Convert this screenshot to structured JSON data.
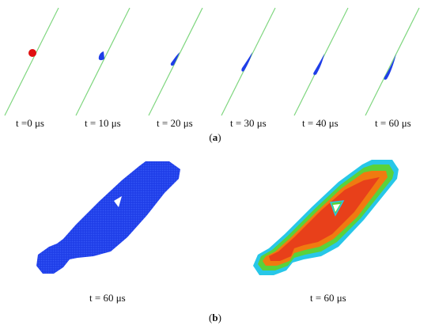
{
  "panel_a": {
    "frames": [
      {
        "label": "t =0 μs"
      },
      {
        "label": "t = 10 μs"
      },
      {
        "label": "t = 20 μs"
      },
      {
        "label": "t = 30 μs"
      },
      {
        "label": "t = 40 μs"
      },
      {
        "label": "t = 60 μs"
      }
    ],
    "caption_prefix": "(",
    "caption_letter": "a",
    "caption_suffix": ")"
  },
  "panel_b": {
    "left_label": "t = 60 μs",
    "right_label": "t = 60 μs",
    "caption_prefix": "(",
    "caption_letter": "b",
    "caption_suffix": ")"
  },
  "colors": {
    "line": "#7fd67f",
    "droplet": "#e01010",
    "blue": "#1f3ee8",
    "red": "#e8401a",
    "orange": "#f07a10",
    "green": "#5ad23a",
    "cyan": "#27c7e8"
  }
}
